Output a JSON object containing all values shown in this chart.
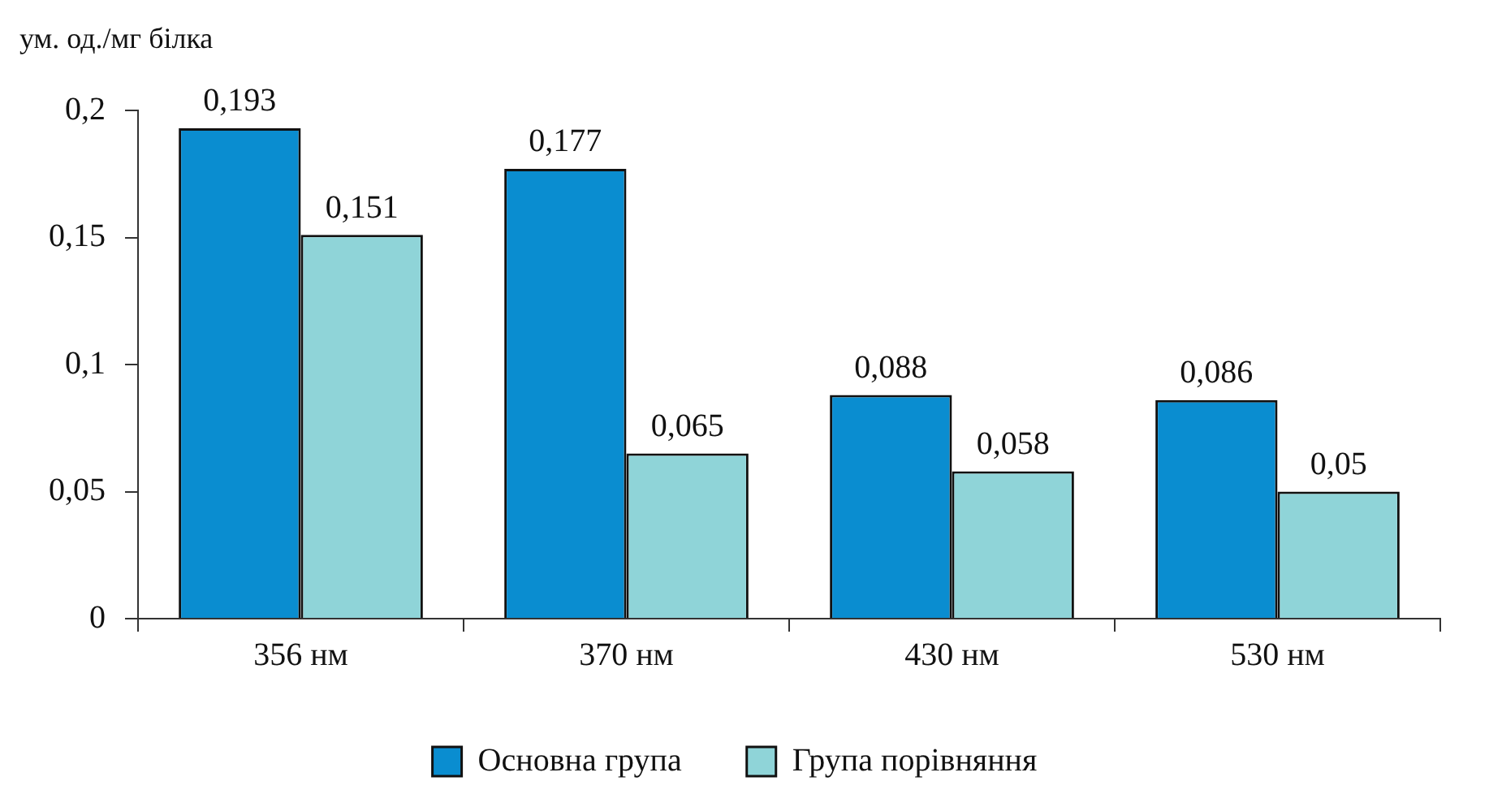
{
  "chart_data": {
    "type": "bar",
    "ylabel": "ум. од./мг білка",
    "categories": [
      "356 нм",
      "370 нм",
      "430 нм",
      "530 нм"
    ],
    "series": [
      {
        "name": "Основна група",
        "color": "#0a8dd0",
        "values": [
          0.193,
          0.177,
          0.088,
          0.086
        ],
        "value_labels": [
          "0,193",
          "0,177",
          "0,088",
          "0,086"
        ]
      },
      {
        "name": "Група порівняння",
        "color": "#8fd4d8",
        "values": [
          0.151,
          0.065,
          0.058,
          0.05
        ],
        "value_labels": [
          "0,151",
          "0,065",
          "0,058",
          "0,05"
        ]
      }
    ],
    "ylim": [
      0,
      0.2
    ],
    "yticks": [
      0,
      {
        "value": 0.05,
        "label": "0,05"
      },
      {
        "value": 0.1,
        "label": "0,1"
      },
      {
        "value": 0.15,
        "label": "0,15"
      },
      {
        "value": 0.2,
        "label": "0,2"
      }
    ],
    "grid": false,
    "legend": "bottom"
  }
}
